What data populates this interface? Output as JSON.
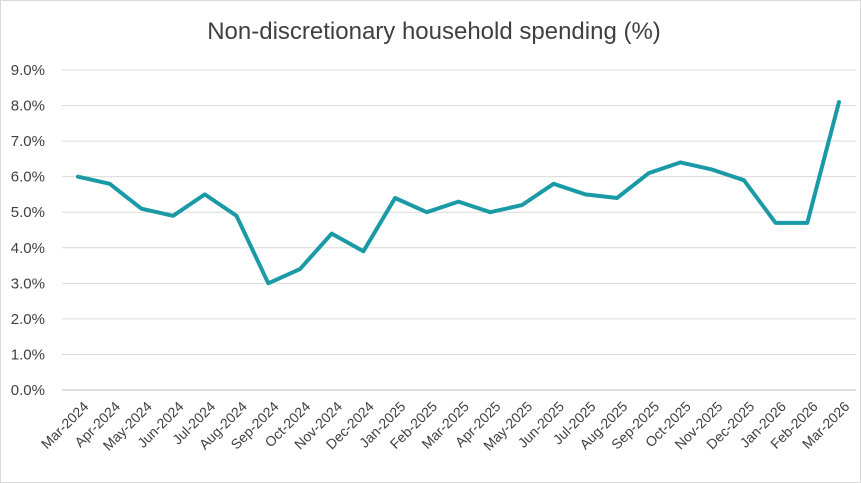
{
  "chart_data": {
    "type": "line",
    "title": "Non-discretionary household spending (%)",
    "xlabel": "",
    "ylabel": "",
    "ylim": [
      0,
      9
    ],
    "ytick_step": 1,
    "ytick_format": "percent_1dp",
    "grid": true,
    "legend": "none",
    "categories": [
      "Mar-2024",
      "Apr-2024",
      "May-2024",
      "Jun-2024",
      "Jul-2024",
      "Aug-2024",
      "Sep-2024",
      "Oct-2024",
      "Nov-2024",
      "Dec-2024",
      "Jan-2025",
      "Feb-2025",
      "Mar-2025",
      "Apr-2025",
      "May-2025",
      "Jun-2025",
      "Jul-2025",
      "Aug-2025",
      "Sep-2025",
      "Oct-2025",
      "Nov-2025",
      "Dec-2025",
      "Jan-2026",
      "Feb-2026",
      "Mar-2026"
    ],
    "series": [
      {
        "color": "#1a9aa6",
        "values": [
          6.0,
          5.8,
          5.1,
          4.9,
          5.5,
          4.9,
          3.0,
          3.4,
          4.4,
          3.9,
          5.4,
          5.0,
          5.3,
          5.0,
          5.2,
          5.8,
          5.5,
          5.4,
          6.1,
          6.4,
          6.2,
          5.9,
          4.7,
          4.7,
          8.1
        ]
      }
    ]
  }
}
